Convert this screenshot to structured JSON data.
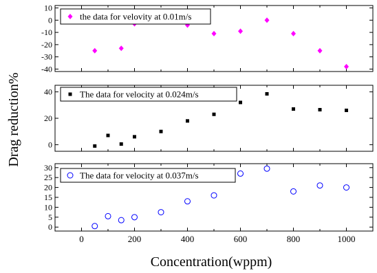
{
  "chart_data": [
    {
      "type": "scatter",
      "x": [
        50,
        150,
        200,
        400,
        500,
        600,
        700,
        800,
        900,
        1000
      ],
      "series": [
        {
          "name": "the data for velovity at 0.01m/s",
          "values": [
            -25,
            -23,
            -3,
            -4,
            -11,
            -9,
            0,
            -11,
            -25,
            -38
          ],
          "marker": "diamond",
          "color": "#ff00ff"
        }
      ],
      "xlim": [
        -100,
        1100
      ],
      "ylim": [
        -42,
        12
      ],
      "yticks": [
        10,
        0,
        -10,
        -20,
        -30,
        -40
      ],
      "legend": "top-left"
    },
    {
      "type": "scatter",
      "x": [
        50,
        100,
        150,
        200,
        300,
        400,
        500,
        600,
        700,
        800,
        900,
        1000
      ],
      "series": [
        {
          "name": "The data for velocity at 0.024m/s",
          "values": [
            -1,
            7,
            0.5,
            6,
            10,
            18,
            23,
            32,
            38.5,
            27,
            26.5,
            26
          ],
          "marker": "square",
          "color": "#000000"
        }
      ],
      "xlim": [
        -100,
        1100
      ],
      "ylim": [
        -5,
        45
      ],
      "yticks": [
        40,
        20,
        0
      ],
      "legend": "top-left"
    },
    {
      "type": "scatter",
      "x": [
        50,
        100,
        150,
        200,
        300,
        400,
        500,
        600,
        700,
        800,
        900,
        1000
      ],
      "series": [
        {
          "name": "The data for velocity at 0.037m/s",
          "values": [
            0.5,
            5.5,
            3.5,
            5,
            7.5,
            13,
            16,
            27,
            29.5,
            18,
            21,
            20
          ],
          "marker": "circle-open",
          "color": "#0000ff"
        }
      ],
      "xlim": [
        -100,
        1100
      ],
      "ylim": [
        -2,
        32
      ],
      "yticks": [
        30,
        25,
        20,
        15,
        10,
        5,
        0
      ],
      "xticks": [
        0,
        200,
        400,
        600,
        800,
        1000
      ],
      "legend": "top-left"
    }
  ],
  "ylabel": "Drag reduction%",
  "xlabel": "Concentration(wppm)"
}
